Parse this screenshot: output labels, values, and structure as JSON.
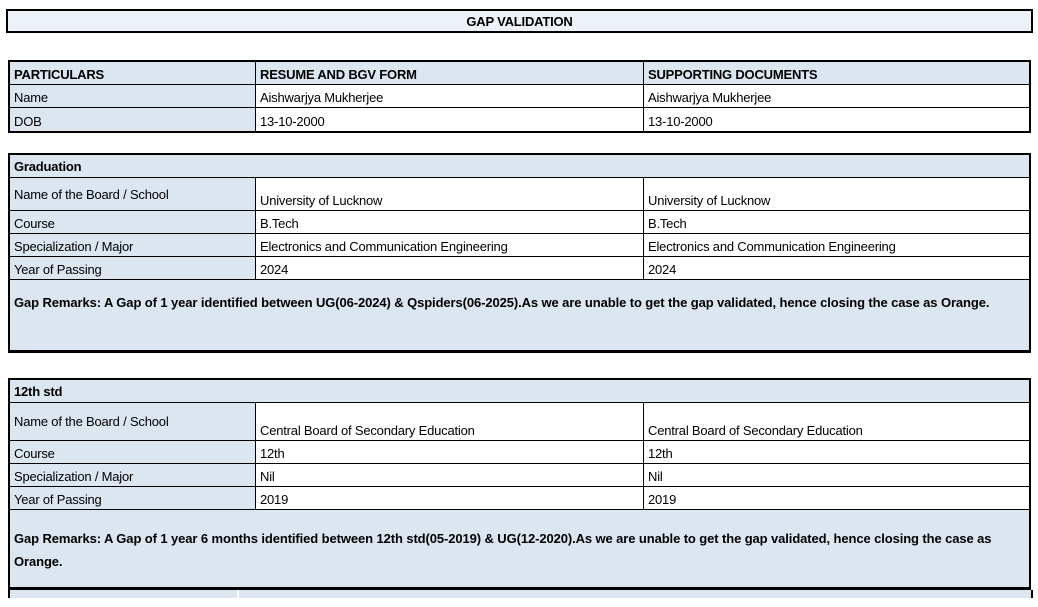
{
  "title": "GAP VALIDATION",
  "colors": {
    "cell_fill": "#dce6f1",
    "title_fill": "#edf2f8",
    "border": "#000000"
  },
  "particulars_table": {
    "headers": [
      "PARTICULARS",
      "RESUME AND BGV FORM",
      "SUPPORTING DOCUMENTS"
    ],
    "rows": [
      {
        "label": "Name",
        "resume": "Aishwarjya Mukherjee",
        "supporting": "Aishwarjya Mukherjee"
      },
      {
        "label": "DOB",
        "resume": "13-10-2000",
        "supporting": "13-10-2000"
      }
    ]
  },
  "sections": [
    {
      "title": "Graduation",
      "rows": [
        {
          "label": "Name of the Board / School",
          "resume": "University of Lucknow",
          "supporting": "University of Lucknow"
        },
        {
          "label": "Course",
          "resume": "B.Tech",
          "supporting": "B.Tech"
        },
        {
          "label": "Specialization / Major",
          "resume": "Electronics and Communication Engineering",
          "supporting": "Electronics and Communication Engineering"
        },
        {
          "label": "Year of Passing",
          "resume": "2024",
          "supporting": "2024"
        }
      ],
      "gap_remarks": "Gap Remarks: A Gap of 1 year identified between UG(06-2024) & Qspiders(06-2025).As we are unable to get the gap validated, hence closing the case as Orange."
    },
    {
      "title": "12th std",
      "rows": [
        {
          "label": "Name of the Board / School",
          "resume": "Central Board of Secondary Education",
          "supporting": "Central Board of Secondary Education"
        },
        {
          "label": "Course",
          "resume": "12th",
          "supporting": "12th"
        },
        {
          "label": "Specialization / Major",
          "resume": "Nil",
          "supporting": "Nil"
        },
        {
          "label": "Year of Passing",
          "resume": "2019",
          "supporting": "2019"
        }
      ],
      "gap_remarks": "Gap Remarks: A Gap of 1 year 6 months identified between 12th std(05-2019) & UG(12-2020).As we are unable to get the gap validated, hence closing the case as Orange."
    }
  ]
}
